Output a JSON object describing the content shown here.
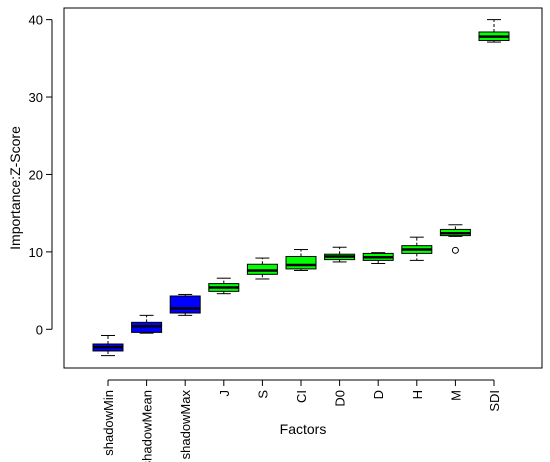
{
  "chart_data": {
    "type": "boxplot",
    "title": "",
    "xlabel": "Factors",
    "ylabel": "Importance:Z-Score",
    "ylim": [
      -5.0,
      41.5
    ],
    "yticks": [
      0,
      10,
      20,
      30,
      40
    ],
    "grid": false,
    "legend": "none",
    "categories": [
      "shadowMin",
      "shadowMean",
      "shadowMax",
      "J",
      "S",
      "CI",
      "D0",
      "D",
      "H",
      "M",
      "SDI"
    ],
    "boxes": [
      {
        "label": "shadowMin",
        "min": -3.4,
        "q1": -2.8,
        "median": -2.3,
        "q3": -1.9,
        "max": -0.8,
        "outliers": [],
        "color": "#0000ff"
      },
      {
        "label": "shadowMean",
        "min": -0.5,
        "q1": -0.4,
        "median": 0.4,
        "q3": 0.9,
        "max": 1.8,
        "outliers": [],
        "color": "#0000ff"
      },
      {
        "label": "shadowMax",
        "min": 1.8,
        "q1": 2.1,
        "median": 2.7,
        "q3": 4.3,
        "max": 4.5,
        "outliers": [],
        "color": "#0000ff"
      },
      {
        "label": "J",
        "min": 4.6,
        "q1": 4.9,
        "median": 5.4,
        "q3": 5.9,
        "max": 6.6,
        "outliers": [],
        "color": "#00ff00"
      },
      {
        "label": "S",
        "min": 6.5,
        "q1": 7.1,
        "median": 7.6,
        "q3": 8.4,
        "max": 9.2,
        "outliers": [],
        "color": "#00ff00"
      },
      {
        "label": "CI",
        "min": 7.6,
        "q1": 7.8,
        "median": 8.3,
        "q3": 9.4,
        "max": 10.3,
        "outliers": [],
        "color": "#00ff00"
      },
      {
        "label": "D0",
        "min": 8.7,
        "q1": 9.0,
        "median": 9.4,
        "q3": 9.7,
        "max": 10.6,
        "outliers": [],
        "color": "#00ff00"
      },
      {
        "label": "D",
        "min": 8.5,
        "q1": 8.9,
        "median": 9.3,
        "q3": 9.8,
        "max": 9.9,
        "outliers": [],
        "color": "#00ff00"
      },
      {
        "label": "H",
        "min": 8.9,
        "q1": 9.8,
        "median": 10.3,
        "q3": 10.8,
        "max": 11.9,
        "outliers": [],
        "color": "#00ff00"
      },
      {
        "label": "M",
        "min": 12.0,
        "q1": 12.1,
        "median": 12.4,
        "q3": 12.9,
        "max": 13.5,
        "outliers": [
          10.2
        ],
        "color": "#00ff00"
      },
      {
        "label": "SDI",
        "min": 37.1,
        "q1": 37.3,
        "median": 37.8,
        "q3": 38.4,
        "max": 40.0,
        "outliers": [],
        "color": "#00ff00"
      }
    ]
  }
}
